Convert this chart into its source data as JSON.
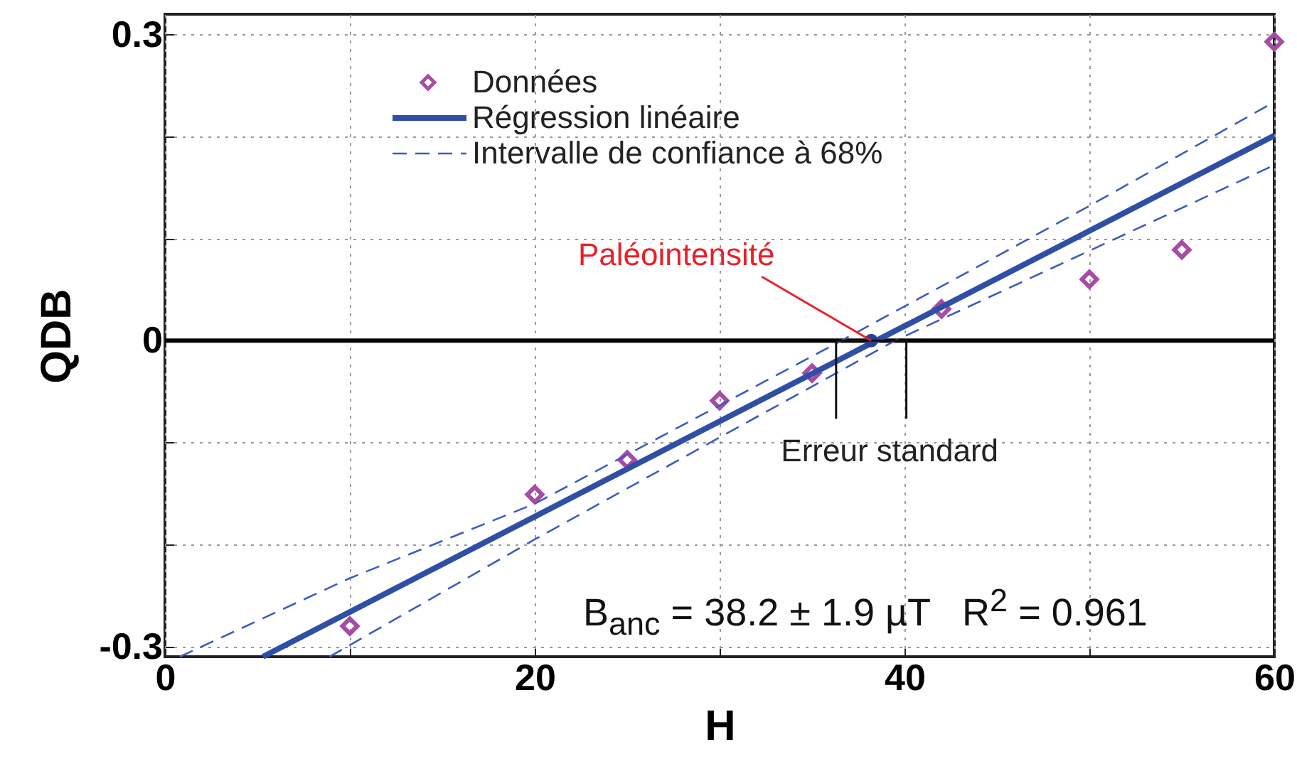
{
  "chart_data": {
    "type": "scatter",
    "xlabel": "H",
    "ylabel": "QDB",
    "xlim": [
      0,
      60
    ],
    "ylim": [
      -0.31,
      0.32
    ],
    "xticks": [
      0,
      {
        "value": 10,
        "label": null
      },
      20,
      {
        "value": 30,
        "label": null
      },
      40,
      {
        "value": 50,
        "label": null
      },
      60
    ],
    "yticks": [
      {
        "value": -0.3,
        "label": "-0.3"
      },
      {
        "value": -0.2,
        "label": null
      },
      {
        "value": -0.1,
        "label": null
      },
      0,
      {
        "value": 0.1,
        "label": null
      },
      {
        "value": 0.2,
        "label": null
      },
      0.3
    ],
    "grid": true,
    "legend": "top left",
    "series": [
      {
        "name": "Données",
        "type": "scatter",
        "marker": "diamond",
        "color": "#a64ca6",
        "x": [
          10,
          20,
          25,
          30,
          35,
          42,
          50,
          55,
          60
        ],
        "values": [
          -0.28,
          -0.151,
          -0.117,
          -0.059,
          -0.032,
          0.031,
          0.06,
          0.089,
          0.293
        ]
      },
      {
        "name": "Régression linéaire",
        "type": "line",
        "line_style": "solid",
        "color": "#2f4fa5",
        "x": [
          5.3,
          60
        ],
        "values": [
          -0.31,
          0.201
        ]
      },
      {
        "name": "Intervalle de confiance à 68%",
        "type": "line",
        "line_style": "dashed",
        "color": "#3d5cc0",
        "x": [
          0.8,
          10,
          20,
          36.6,
          50,
          60
        ],
        "values": [
          -0.31,
          -0.233,
          -0.16,
          0,
          0.132,
          0.234
        ]
      },
      {
        "type": "line",
        "line_style": "dashed",
        "color": "#3d5cc0",
        "x": [
          8.9,
          20,
          39.5,
          50,
          60
        ],
        "values": [
          -0.31,
          -0.195,
          0,
          0.088,
          0.172
        ]
      },
      {
        "type": "scatter",
        "marker": "circle",
        "color": "#24448f",
        "x": [
          38.2
        ],
        "values": [
          0
        ],
        "xerrors": [
          [
            36.3,
            40.1
          ]
        ]
      }
    ],
    "ref_lines": [
      {
        "axis": "y",
        "value": 0,
        "color": "#000000"
      }
    ],
    "annotations": [
      {
        "text": "Paléointensité",
        "x": 38.2,
        "y": 0
      },
      {
        "text": "Erreur standard",
        "x": 38.2,
        "y": 0
      },
      "B$_{anc}$ = 38.2 ± 1.9 µT   R$^{2}$ = 0.961"
    ]
  }
}
